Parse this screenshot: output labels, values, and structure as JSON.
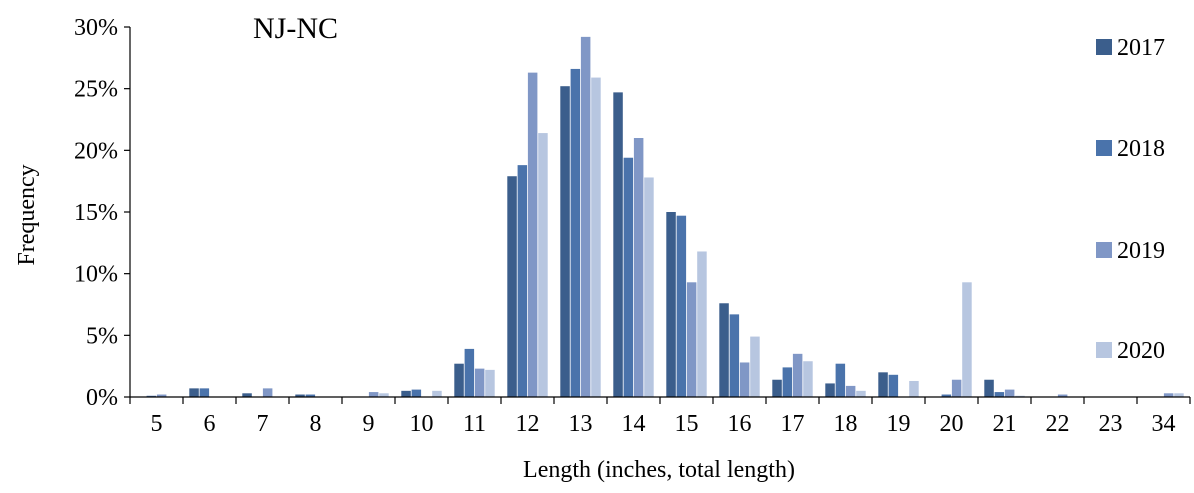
{
  "chart_data": {
    "type": "bar",
    "title": "NJ-NC",
    "xlabel": "Length (inches, total length)",
    "ylabel": "Frequency",
    "ylim": [
      0,
      30
    ],
    "y_ticks": [
      "0%",
      "5%",
      "10%",
      "15%",
      "20%",
      "25%",
      "30%"
    ],
    "categories": [
      "5",
      "6",
      "7",
      "8",
      "9",
      "10",
      "11",
      "12",
      "13",
      "14",
      "15",
      "16",
      "17",
      "18",
      "19",
      "20",
      "21",
      "22",
      "23",
      "34"
    ],
    "series": [
      {
        "name": "2017",
        "color": "#3B5E8C",
        "values": [
          0.0,
          0.7,
          0.3,
          0.2,
          0.0,
          0.5,
          2.7,
          17.9,
          25.2,
          24.7,
          15.0,
          7.6,
          1.4,
          1.1,
          2.0,
          0.0,
          1.4,
          0.0,
          0.0,
          0.0
        ]
      },
      {
        "name": "2018",
        "color": "#4A73AB",
        "values": [
          0.1,
          0.7,
          0.0,
          0.2,
          0.0,
          0.6,
          3.9,
          18.8,
          26.6,
          19.4,
          14.7,
          6.7,
          2.4,
          2.7,
          1.8,
          0.2,
          0.4,
          0.0,
          0.0,
          0.0
        ]
      },
      {
        "name": "2019",
        "color": "#8097C6",
        "values": [
          0.2,
          0.0,
          0.7,
          0.0,
          0.4,
          0.0,
          2.3,
          26.3,
          29.2,
          21.0,
          9.3,
          2.8,
          3.5,
          0.9,
          0.0,
          1.4,
          0.6,
          0.2,
          0.0,
          0.3
        ]
      },
      {
        "name": "2020",
        "color": "#B7C6E0",
        "values": [
          0.0,
          0.0,
          0.0,
          0.0,
          0.3,
          0.5,
          2.2,
          21.4,
          25.9,
          17.8,
          11.8,
          4.9,
          2.9,
          0.5,
          1.3,
          9.3,
          0.1,
          0.0,
          0.0,
          0.3
        ]
      }
    ],
    "legend_position": "right",
    "grid": false
  }
}
